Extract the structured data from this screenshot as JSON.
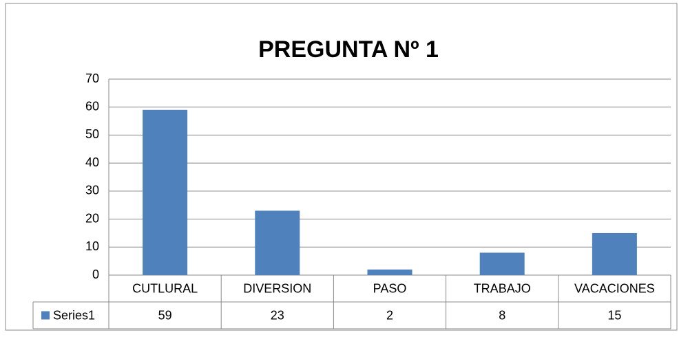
{
  "chart_data": {
    "type": "bar",
    "title": "PREGUNTA Nº 1",
    "categories": [
      "CUTLURAL",
      "DIVERSION",
      "PASO",
      "TRABAJO",
      "VACACIONES"
    ],
    "series": [
      {
        "name": "Series1",
        "color": "#4f81bd",
        "values": [
          59,
          23,
          2,
          8,
          15
        ]
      }
    ],
    "ylim": [
      0,
      70
    ],
    "yticks": [
      0,
      10,
      20,
      30,
      40,
      50,
      60,
      70
    ],
    "grid": true,
    "legend": "data-table"
  }
}
